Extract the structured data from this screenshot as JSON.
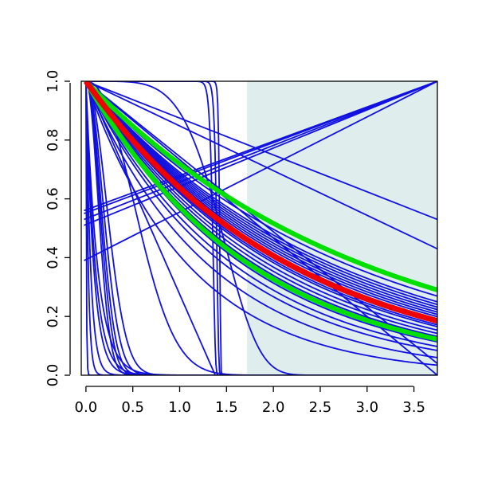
{
  "chart_data": {
    "type": "line",
    "title": "",
    "xlabel": "",
    "ylabel": "",
    "xlim": [
      -0.05,
      3.75
    ],
    "ylim": [
      0.0,
      1.0
    ],
    "x_ticks": [
      0.0,
      0.5,
      1.0,
      1.5,
      2.0,
      2.5,
      3.0,
      3.5
    ],
    "x_tick_labels": [
      "0.0",
      "0.5",
      "1.0",
      "1.5",
      "2.0",
      "2.5",
      "3.0",
      "3.5"
    ],
    "y_ticks": [
      0.0,
      0.2,
      0.4,
      0.6,
      0.8,
      1.0
    ],
    "y_tick_labels": [
      "0.0",
      "0.2",
      "0.4",
      "0.6",
      "0.8",
      "1.0"
    ],
    "grid": false,
    "legend": "none",
    "shaded_region": {
      "x_from": 1.72,
      "x_to": 3.75,
      "color": "#e0eded"
    },
    "colors": {
      "background_curves": "#1010e0",
      "green_bounds": "#00e000",
      "red_main": "#f00000"
    },
    "series": [
      {
        "kind": "exp",
        "rate": 0.33,
        "color": "#1010e0"
      },
      {
        "kind": "exp",
        "rate": 0.35,
        "color": "#1010e0"
      },
      {
        "kind": "exp",
        "rate": 0.37,
        "color": "#1010e0"
      },
      {
        "kind": "exp",
        "rate": 0.38,
        "color": "#1010e0"
      },
      {
        "kind": "exp",
        "rate": 0.39,
        "color": "#1010e0"
      },
      {
        "kind": "exp",
        "rate": 0.4,
        "color": "#1010e0"
      },
      {
        "kind": "exp",
        "rate": 0.41,
        "color": "#1010e0"
      },
      {
        "kind": "exp",
        "rate": 0.42,
        "color": "#1010e0"
      },
      {
        "kind": "exp",
        "rate": 0.43,
        "color": "#1010e0"
      },
      {
        "kind": "exp",
        "rate": 0.44,
        "color": "#1010e0"
      },
      {
        "kind": "exp",
        "rate": 0.45,
        "color": "#1010e0"
      },
      {
        "kind": "exp",
        "rate": 0.46,
        "color": "#1010e0"
      },
      {
        "kind": "exp",
        "rate": 0.47,
        "color": "#1010e0"
      },
      {
        "kind": "exp",
        "rate": 0.48,
        "color": "#1010e0"
      },
      {
        "kind": "exp",
        "rate": 0.5,
        "color": "#1010e0"
      },
      {
        "kind": "exp",
        "rate": 0.52,
        "color": "#1010e0"
      },
      {
        "kind": "exp",
        "rate": 0.54,
        "color": "#1010e0"
      },
      {
        "kind": "exp",
        "rate": 0.55,
        "color": "#1010e0"
      },
      {
        "kind": "exp",
        "rate": 0.56,
        "color": "#1010e0"
      },
      {
        "kind": "exp",
        "rate": 0.58,
        "color": "#1010e0"
      },
      {
        "kind": "exp",
        "rate": 0.62,
        "color": "#1010e0"
      },
      {
        "kind": "exp",
        "rate": 0.66,
        "color": "#1010e0"
      },
      {
        "kind": "exp",
        "rate": 0.75,
        "color": "#1010e0"
      },
      {
        "kind": "exp",
        "rate": 0.9,
        "color": "#1010e0"
      },
      {
        "kind": "exp",
        "rate": 8.0,
        "color": "#1010e0"
      },
      {
        "kind": "exp",
        "rate": 10.0,
        "color": "#1010e0"
      },
      {
        "kind": "exp",
        "rate": 12.0,
        "color": "#1010e0"
      },
      {
        "kind": "exp",
        "rate": 20.0,
        "color": "#1010e0"
      },
      {
        "kind": "exp",
        "rate": 40.0,
        "color": "#1010e0"
      },
      {
        "kind": "exp",
        "rate": 200.0,
        "color": "#1010e0"
      },
      {
        "kind": "weibull",
        "scale": 0.18,
        "shape": 2.0,
        "color": "#1010e0"
      },
      {
        "kind": "weibull",
        "scale": 0.2,
        "shape": 2.0,
        "color": "#1010e0"
      },
      {
        "kind": "weibull",
        "scale": 0.22,
        "shape": 2.0,
        "color": "#1010e0"
      },
      {
        "kind": "weibull",
        "scale": 0.25,
        "shape": 2.0,
        "color": "#1010e0"
      },
      {
        "kind": "weibull",
        "scale": 0.3,
        "shape": 2.0,
        "color": "#1010e0"
      },
      {
        "kind": "weibull",
        "scale": 0.68,
        "shape": 2.2,
        "color": "#1010e0"
      },
      {
        "kind": "weibull",
        "scale": 1.36,
        "shape": 60,
        "color": "#1010e0"
      },
      {
        "kind": "weibull",
        "scale": 1.4,
        "shape": 80,
        "color": "#1010e0"
      },
      {
        "kind": "weibull",
        "scale": 1.43,
        "shape": 150,
        "color": "#1010e0"
      },
      {
        "kind": "weibull",
        "scale": 1.55,
        "shape": 5.0,
        "color": "#1010e0"
      },
      {
        "kind": "linear",
        "x0": 0.0,
        "y0": 1.0,
        "x1": 1.38,
        "y1": 0.0,
        "color": "#1010e0"
      },
      {
        "kind": "linear",
        "x0": 0.0,
        "y0": 1.0,
        "x1": 3.75,
        "y1": 0.0,
        "color": "#1010e0"
      },
      {
        "kind": "linear",
        "x0": 0.0,
        "y0": 1.0,
        "x1": 3.75,
        "y1": 0.04,
        "color": "#1010e0"
      },
      {
        "kind": "linear",
        "x0": 0.0,
        "y0": 1.0,
        "x1": 3.75,
        "y1": 0.53,
        "color": "#1010e0"
      },
      {
        "kind": "linear",
        "x0": 0.0,
        "y0": 1.0,
        "x1": 3.75,
        "y1": 0.43,
        "color": "#1010e0"
      },
      {
        "kind": "linear",
        "x0": -0.02,
        "y0": 0.39,
        "x1": 3.75,
        "y1": 1.0,
        "color": "#1010e0"
      },
      {
        "kind": "linear",
        "x0": -0.02,
        "y0": 0.51,
        "x1": 3.75,
        "y1": 1.0,
        "color": "#1010e0"
      },
      {
        "kind": "linear",
        "x0": -0.02,
        "y0": 0.53,
        "x1": 3.75,
        "y1": 1.0,
        "color": "#1010e0"
      },
      {
        "kind": "linear",
        "x0": -0.02,
        "y0": 0.55,
        "x1": 3.75,
        "y1": 1.0,
        "color": "#1010e0"
      },
      {
        "kind": "linear",
        "x0": -0.02,
        "y0": 0.56,
        "x1": 3.75,
        "y1": 1.0,
        "color": "#1010e0"
      },
      {
        "kind": "exp",
        "rate": 0.33,
        "color": "#00e000",
        "width": 6
      },
      {
        "kind": "exp",
        "rate": 0.56,
        "color": "#00e000",
        "width": 6
      },
      {
        "kind": "exp",
        "rate": 0.45,
        "color": "#f00000",
        "width": 7
      }
    ]
  }
}
